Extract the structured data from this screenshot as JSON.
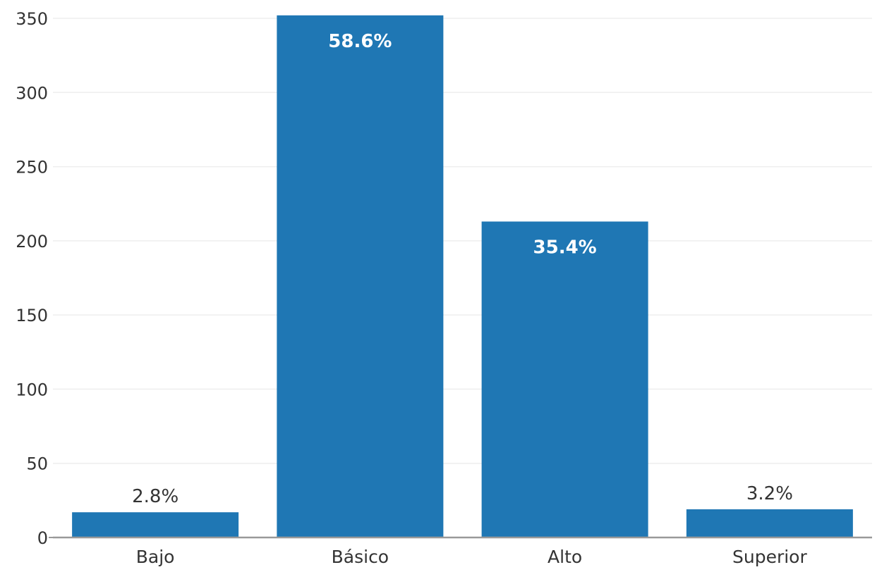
{
  "chart_data": {
    "type": "bar",
    "title": "",
    "xlabel": "",
    "ylabel": "",
    "categories": [
      "Bajo",
      "Básico",
      "Alto",
      "Superior"
    ],
    "values": [
      17,
      352,
      213,
      19
    ],
    "data_labels": [
      "2.8%",
      "58.6%",
      "35.4%",
      "3.2%"
    ],
    "ylim": [
      0,
      350
    ],
    "yticks": [
      0,
      50,
      100,
      150,
      200,
      250,
      300,
      350
    ],
    "ytick_labels": [
      "0",
      "50",
      "100",
      "150",
      "200",
      "250",
      "300",
      "350"
    ],
    "grid": true,
    "legend": "none",
    "colors": {
      "bar": "#1f77b4",
      "grid": "#eeeeee",
      "axis": "#999999",
      "text": "#333333",
      "label_inside": "#ffffff"
    }
  }
}
